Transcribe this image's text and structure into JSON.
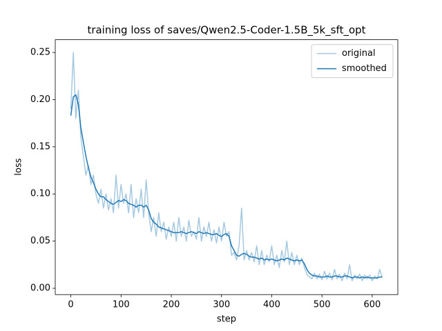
{
  "chart_data": {
    "type": "line",
    "title": "training loss of saves/Qwen2.5-Coder-1.5B_5k_sft_opt",
    "x_label": "step",
    "y_label": "loss",
    "x": [
      0,
      5,
      10,
      15,
      20,
      25,
      30,
      35,
      40,
      45,
      50,
      55,
      60,
      65,
      70,
      75,
      80,
      85,
      90,
      95,
      100,
      105,
      110,
      115,
      120,
      125,
      130,
      135,
      140,
      145,
      150,
      155,
      160,
      165,
      170,
      175,
      180,
      185,
      190,
      195,
      200,
      205,
      210,
      215,
      220,
      225,
      230,
      235,
      240,
      245,
      250,
      255,
      260,
      265,
      270,
      275,
      280,
      285,
      290,
      295,
      300,
      305,
      310,
      315,
      320,
      325,
      330,
      335,
      340,
      345,
      350,
      355,
      360,
      365,
      370,
      375,
      380,
      385,
      390,
      395,
      400,
      405,
      410,
      415,
      420,
      425,
      430,
      435,
      440,
      445,
      450,
      455,
      460,
      465,
      470,
      475,
      480,
      485,
      490,
      495,
      500,
      505,
      510,
      515,
      520,
      525,
      530,
      535,
      540,
      545,
      550,
      555,
      560,
      565,
      570,
      575,
      580,
      585,
      590,
      595,
      600,
      605,
      610,
      615,
      620
    ],
    "series": [
      {
        "name": "original",
        "color": "#a5c8e1",
        "values": [
          0.19,
          0.25,
          0.18,
          0.21,
          0.16,
          0.14,
          0.12,
          0.13,
          0.11,
          0.12,
          0.1,
          0.09,
          0.105,
          0.085,
          0.1,
          0.083,
          0.095,
          0.08,
          0.12,
          0.085,
          0.11,
          0.09,
          0.1,
          0.08,
          0.11,
          0.075,
          0.095,
          0.08,
          0.105,
          0.075,
          0.115,
          0.08,
          0.06,
          0.075,
          0.055,
          0.08,
          0.06,
          0.07,
          0.052,
          0.065,
          0.055,
          0.07,
          0.05,
          0.075,
          0.055,
          0.065,
          0.05,
          0.072,
          0.055,
          0.06,
          0.052,
          0.075,
          0.05,
          0.065,
          0.055,
          0.07,
          0.05,
          0.062,
          0.048,
          0.065,
          0.05,
          0.07,
          0.055,
          0.06,
          0.035,
          0.038,
          0.03,
          0.045,
          0.085,
          0.03,
          0.04,
          0.03,
          0.038,
          0.028,
          0.045,
          0.025,
          0.04,
          0.025,
          0.035,
          0.028,
          0.045,
          0.025,
          0.035,
          0.022,
          0.04,
          0.028,
          0.05,
          0.025,
          0.038,
          0.025,
          0.035,
          0.025,
          0.032,
          0.022,
          0.015,
          0.012,
          0.01,
          0.016,
          0.01,
          0.015,
          0.009,
          0.018,
          0.01,
          0.016,
          0.009,
          0.02,
          0.01,
          0.015,
          0.008,
          0.016,
          0.01,
          0.025,
          0.008,
          0.014,
          0.01,
          0.015,
          0.008,
          0.014,
          0.01,
          0.014,
          0.008,
          0.013,
          0.01,
          0.02,
          0.011
        ]
      },
      {
        "name": "smoothed",
        "color": "#1f77b4",
        "values": [
          0.183,
          0.203,
          0.205,
          0.195,
          0.17,
          0.155,
          0.14,
          0.128,
          0.118,
          0.112,
          0.105,
          0.1,
          0.097,
          0.097,
          0.094,
          0.092,
          0.09,
          0.089,
          0.091,
          0.093,
          0.092,
          0.094,
          0.093,
          0.09,
          0.089,
          0.088,
          0.086,
          0.088,
          0.088,
          0.086,
          0.088,
          0.083,
          0.074,
          0.07,
          0.068,
          0.065,
          0.064,
          0.063,
          0.062,
          0.061,
          0.06,
          0.059,
          0.059,
          0.059,
          0.06,
          0.059,
          0.058,
          0.059,
          0.06,
          0.059,
          0.058,
          0.06,
          0.059,
          0.058,
          0.059,
          0.058,
          0.057,
          0.057,
          0.058,
          0.056,
          0.055,
          0.057,
          0.058,
          0.055,
          0.045,
          0.04,
          0.035,
          0.034,
          0.036,
          0.037,
          0.036,
          0.034,
          0.033,
          0.033,
          0.032,
          0.031,
          0.032,
          0.03,
          0.031,
          0.03,
          0.031,
          0.03,
          0.029,
          0.03,
          0.031,
          0.03,
          0.032,
          0.031,
          0.03,
          0.029,
          0.03,
          0.029,
          0.03,
          0.026,
          0.02,
          0.016,
          0.014,
          0.013,
          0.013,
          0.012,
          0.012,
          0.012,
          0.013,
          0.012,
          0.012,
          0.013,
          0.013,
          0.012,
          0.012,
          0.013,
          0.013,
          0.012,
          0.011,
          0.012,
          0.012,
          0.011,
          0.012,
          0.011,
          0.012,
          0.011,
          0.011,
          0.011,
          0.011,
          0.012,
          0.012
        ]
      }
    ],
    "xlim": [
      -31,
      651
    ],
    "xticks": [
      0,
      100,
      200,
      300,
      400,
      500,
      600
    ],
    "ylim": [
      -0.0067,
      0.2635
    ],
    "yticks": [
      {
        "value": 0,
        "label": "0.00"
      },
      {
        "value": 0.05,
        "label": "0.05"
      },
      {
        "value": 0.1,
        "label": "0.10"
      },
      {
        "value": 0.15,
        "label": "0.15"
      },
      {
        "value": 0.2,
        "label": "0.20"
      },
      {
        "value": 0.25,
        "label": "0.25"
      }
    ],
    "legend": "upper right",
    "grid": false
  }
}
